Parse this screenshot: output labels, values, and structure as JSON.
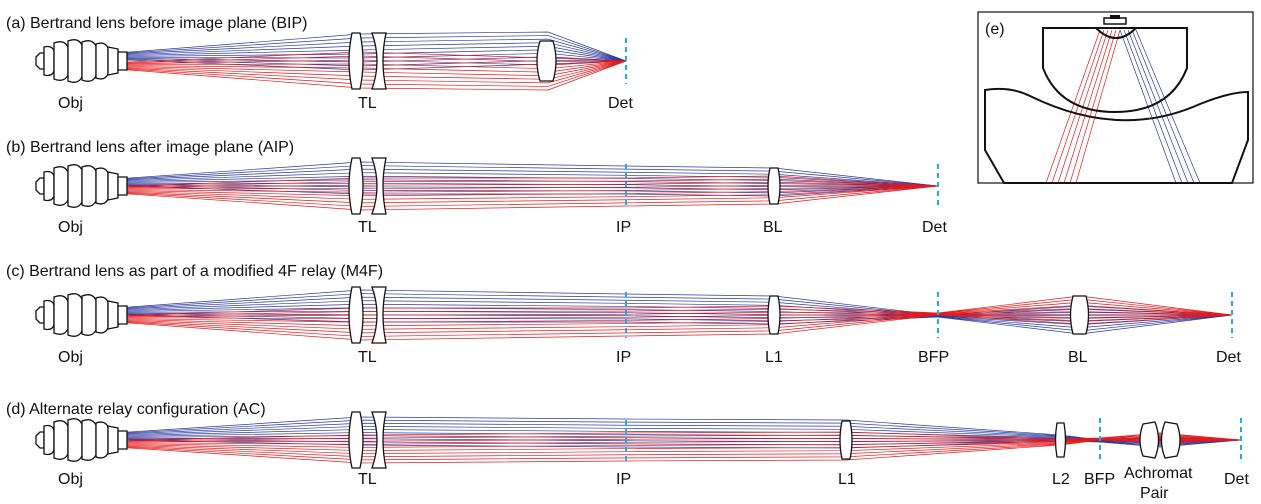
{
  "colors": {
    "red_rays": "#e41a1c",
    "blue_rays": "#2b3a9e",
    "image_plane": "#29a8e0",
    "outline": "#111111"
  },
  "panels": {
    "a": {
      "title": "(a) Bertrand lens before image plane (BIP)",
      "labels": [
        "Obj",
        "TL",
        "Det"
      ]
    },
    "b": {
      "title": "(b) Bertrand lens after image plane (AIP)",
      "labels": [
        "Obj",
        "TL",
        "IP",
        "BL",
        "Det"
      ]
    },
    "c": {
      "title": "(c) Bertrand lens as part of a modified 4F relay (M4F)",
      "labels": [
        "Obj",
        "TL",
        "IP",
        "L1",
        "BFP",
        "BL",
        "Det"
      ]
    },
    "d": {
      "title": "(d) Alternate relay configuration (AC)",
      "labels": [
        "Obj",
        "TL",
        "IP",
        "L1",
        "L2",
        "BFP",
        "Achromat",
        "Pair",
        "Det"
      ]
    },
    "e": {
      "label": "(e)"
    }
  }
}
